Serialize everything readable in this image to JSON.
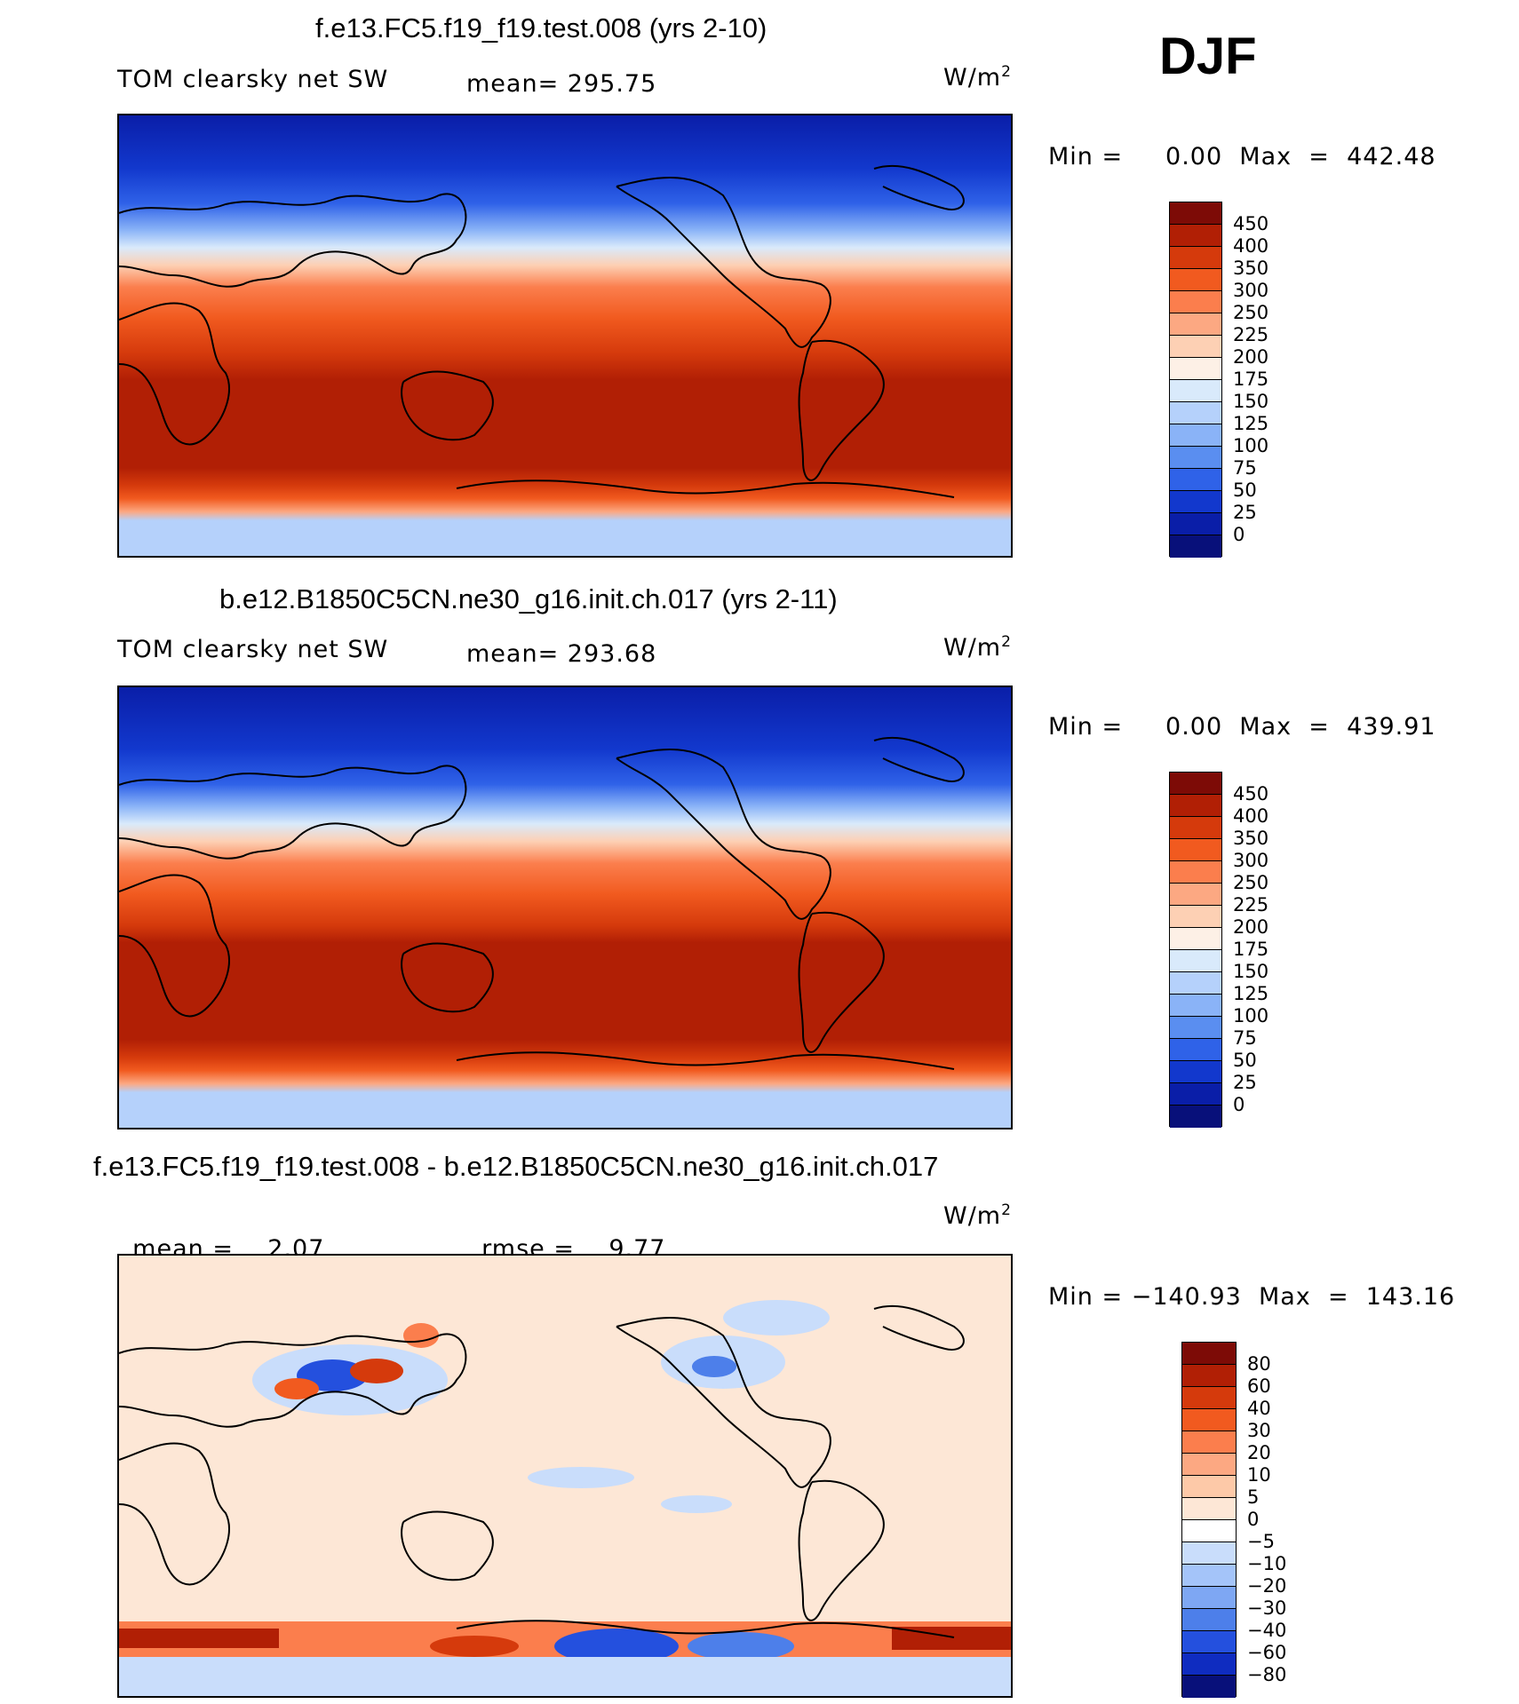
{
  "season": "DJF",
  "units": "W/m",
  "units_sup": "2",
  "panels": [
    {
      "title": "f.e13.FC5.f19_f19.test.008 (yrs 2-10)",
      "variable": "TOM clearsky net SW",
      "mean_label": "mean=",
      "mean_value": "295.75",
      "minmax": "Min =     0.00  Max  =  442.48",
      "colorbar_levels": [
        "450",
        "400",
        "350",
        "300",
        "250",
        "225",
        "200",
        "175",
        "150",
        "125",
        "100",
        "75",
        "50",
        "25",
        "0"
      ],
      "colorbar_colors": [
        "#7d0b06",
        "#b11f05",
        "#d53a0c",
        "#f15a1f",
        "#fb7e4d",
        "#fca882",
        "#fdd0b4",
        "#fdf0e6",
        "#d9eafb",
        "#b5d1fb",
        "#8ab3f7",
        "#5a8ef0",
        "#2f62e8",
        "#1238cd",
        "#0a1ea8",
        "#08107a"
      ]
    },
    {
      "title": "b.e12.B1850C5CN.ne30_g16.init.ch.017 (yrs 2-11)",
      "variable": "TOM clearsky net SW",
      "mean_label": "mean=",
      "mean_value": "293.68",
      "minmax": "Min =     0.00  Max  =  439.91",
      "colorbar_levels": [
        "450",
        "400",
        "350",
        "300",
        "250",
        "225",
        "200",
        "175",
        "150",
        "125",
        "100",
        "75",
        "50",
        "25",
        "0"
      ],
      "colorbar_colors": [
        "#7d0b06",
        "#b11f05",
        "#d53a0c",
        "#f15a1f",
        "#fb7e4d",
        "#fca882",
        "#fdd0b4",
        "#fdf0e6",
        "#d9eafb",
        "#b5d1fb",
        "#8ab3f7",
        "#5a8ef0",
        "#2f62e8",
        "#1238cd",
        "#0a1ea8",
        "#08107a"
      ]
    },
    {
      "title": "f.e13.FC5.f19_f19.test.008 - b.e12.B1850C5CN.ne30_g16.init.ch.017",
      "mean_label": "mean =",
      "mean_value": "2.07",
      "rmse_label": "rmse =",
      "rmse_value": "9.77",
      "minmax": "Min = −140.93  Max  =  143.16",
      "colorbar_levels": [
        "80",
        "60",
        "40",
        "30",
        "20",
        "10",
        "5",
        "0",
        "−5",
        "−10",
        "−20",
        "−30",
        "−40",
        "−60",
        "−80"
      ],
      "colorbar_colors": [
        "#7d0b06",
        "#b11f05",
        "#d53a0c",
        "#f15a1f",
        "#fb7e4d",
        "#fca882",
        "#fdc9a8",
        "#fde7d6",
        "#ffffff",
        "#c9ddfb",
        "#a4c4f9",
        "#7ea7f3",
        "#4d7fea",
        "#2450de",
        "#0f2cc0",
        "#08107a"
      ]
    }
  ],
  "chart_data": [
    {
      "type": "heatmap",
      "title": "f.e13.FC5.f19_f19.test.008 (yrs 2-10)",
      "subtitle": "TOM clearsky net SW",
      "mean": 295.75,
      "min": 0.0,
      "max": 442.48,
      "levels": [
        0,
        25,
        50,
        75,
        100,
        125,
        150,
        175,
        200,
        225,
        250,
        300,
        350,
        400,
        450
      ]
    },
    {
      "type": "heatmap",
      "title": "b.e12.B1850C5CN.ne30_g16.init.ch.017 (yrs 2-11)",
      "subtitle": "TOM clearsky net SW",
      "mean": 293.68,
      "min": 0.0,
      "max": 439.91,
      "levels": [
        0,
        25,
        50,
        75,
        100,
        125,
        150,
        175,
        200,
        225,
        250,
        300,
        350,
        400,
        450
      ]
    },
    {
      "type": "heatmap",
      "title": "f.e13.FC5.f19_f19.test.008 - b.e12.B1850C5CN.ne30_g16.init.ch.017",
      "mean": 2.07,
      "rmse": 9.77,
      "min": -140.93,
      "max": 143.16,
      "levels": [
        -80,
        -60,
        -40,
        -30,
        -20,
        -10,
        -5,
        0,
        5,
        10,
        20,
        30,
        40,
        60,
        80
      ]
    }
  ]
}
